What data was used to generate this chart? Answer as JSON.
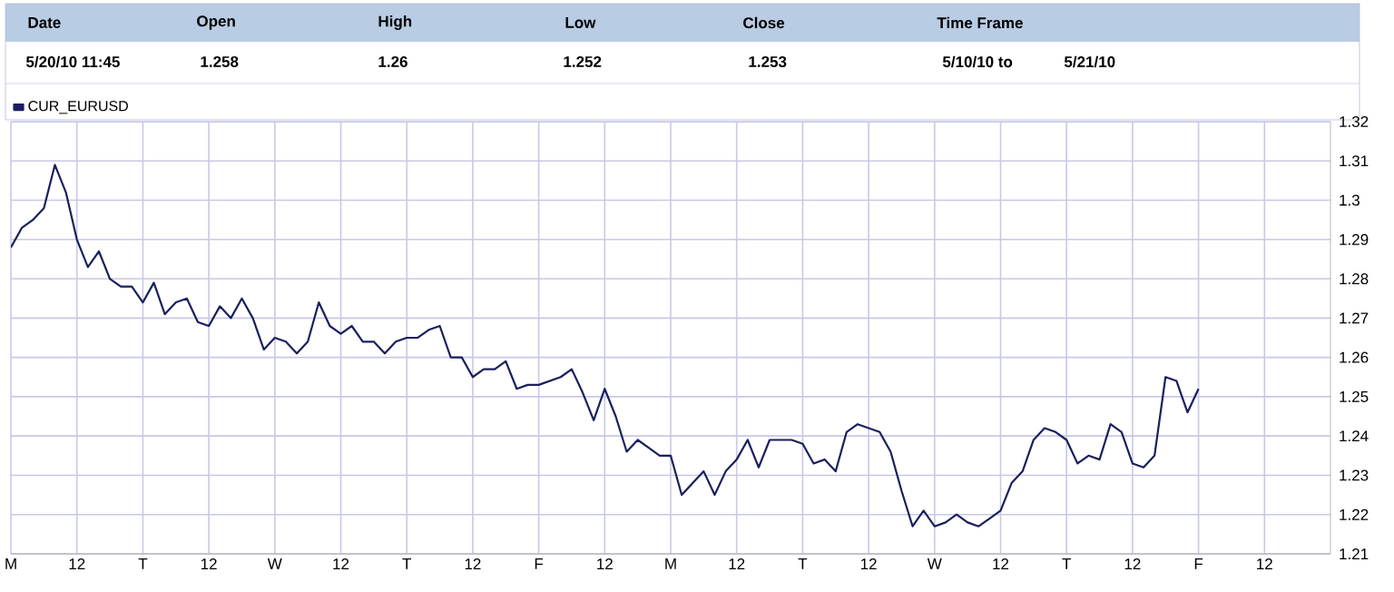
{
  "chart_data": {
    "type": "line",
    "annotations": [
      "Date",
      "Open",
      "High",
      "Low",
      "Close",
      "Time Frame",
      "5/20/10 11:45",
      "1.258",
      "1.26",
      "1.252",
      "1.253",
      "5/10/10 to",
      "5/21/10"
    ],
    "categories": [
      "M",
      null,
      null,
      null,
      null,
      null,
      "12",
      null,
      null,
      null,
      null,
      null,
      "T",
      null,
      null,
      null,
      null,
      null,
      "12",
      null,
      null,
      null,
      null,
      null,
      "W",
      null,
      null,
      null,
      null,
      null,
      "12",
      null,
      null,
      null,
      null,
      null,
      "T",
      null,
      null,
      null,
      null,
      null,
      "12",
      null,
      null,
      null,
      null,
      null,
      "F",
      null,
      null,
      null,
      null,
      null,
      "12",
      null,
      null,
      null,
      null,
      null,
      "M",
      null,
      null,
      null,
      null,
      null,
      "12",
      null,
      null,
      null,
      null,
      null,
      "T",
      null,
      null,
      null,
      null,
      null,
      "12",
      null,
      null,
      null,
      null,
      null,
      "W",
      null,
      null,
      null,
      null,
      null,
      "12",
      null,
      null,
      null,
      null,
      null,
      "T",
      null,
      null,
      null,
      null,
      null,
      "12",
      null,
      null,
      null,
      null,
      null,
      "F",
      null,
      null,
      null,
      null,
      null,
      "12",
      null,
      null,
      null,
      null,
      null
    ],
    "series": [
      {
        "name": "CUR_EURUSD",
        "color": "#1a1f5e",
        "values": [
          1.288,
          1.293,
          1.295,
          1.298,
          1.309,
          1.302,
          1.29,
          1.283,
          1.287,
          1.28,
          1.278,
          1.278,
          1.274,
          1.279,
          1.271,
          1.274,
          1.275,
          1.269,
          1.268,
          1.273,
          1.27,
          1.275,
          1.27,
          1.262,
          1.265,
          1.264,
          1.261,
          1.264,
          1.274,
          1.268,
          1.266,
          1.268,
          1.264,
          1.264,
          1.261,
          1.264,
          1.265,
          1.265,
          1.267,
          1.268,
          1.26,
          1.26,
          1.255,
          1.257,
          1.257,
          1.259,
          1.252,
          1.253,
          1.253,
          1.254,
          1.255,
          1.257,
          1.251,
          1.244,
          1.252,
          1.245,
          1.236,
          1.239,
          1.237,
          1.235,
          1.235,
          1.225,
          1.228,
          1.231,
          1.225,
          1.231,
          1.234,
          1.239,
          1.232,
          1.239,
          1.239,
          1.239,
          1.238,
          1.233,
          1.234,
          1.231,
          1.241,
          1.243,
          1.242,
          1.241,
          1.236,
          1.226,
          1.217,
          1.221,
          1.217,
          1.218,
          1.22,
          1.218,
          1.217,
          1.219,
          1.221,
          1.228,
          1.231,
          1.239,
          1.242,
          1.241,
          1.239,
          1.233,
          1.235,
          1.234,
          1.243,
          1.241,
          1.233,
          1.232,
          1.235,
          1.255,
          1.254,
          1.246,
          1.252,
          null,
          null,
          null,
          null,
          null,
          null,
          null,
          null,
          null,
          null,
          null
        ]
      }
    ],
    "ylim": [
      1.21,
      1.32
    ],
    "yticks": [
      1.21,
      1.22,
      1.23,
      1.24,
      1.25,
      1.26,
      1.27,
      1.28,
      1.29,
      1.3,
      1.31,
      1.32
    ],
    "grid": true,
    "legend": "top left",
    "marker": "none",
    "line_style": "solid"
  }
}
